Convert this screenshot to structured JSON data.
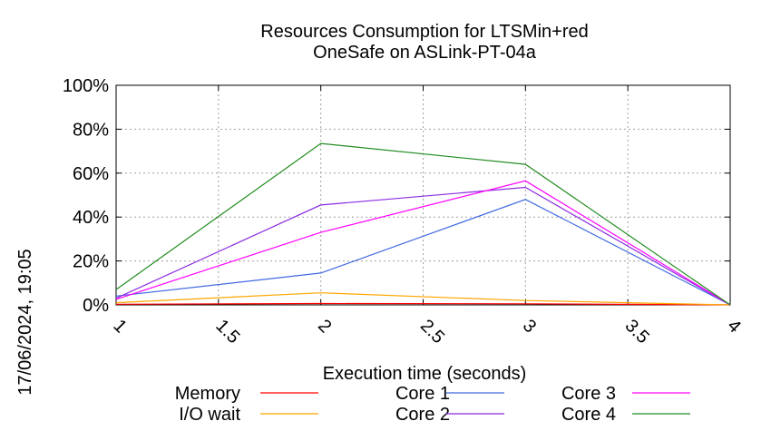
{
  "chart_data": {
    "type": "line",
    "title_lines": [
      "Resources Consumption for LTSMin+red",
      "OneSafe on ASLink-PT-04a"
    ],
    "xlabel": "Execution time (seconds)",
    "ylabel": "",
    "timestamp": "17/06/2024, 19:05",
    "xlim": [
      1,
      4
    ],
    "ylim": [
      0,
      100
    ],
    "x_ticks": [
      {
        "value": 1,
        "label": "1"
      },
      {
        "value": 1.5,
        "label": "1.5"
      },
      {
        "value": 2,
        "label": "2"
      },
      {
        "value": 2.5,
        "label": "2.5"
      },
      {
        "value": 3,
        "label": "3"
      },
      {
        "value": 3.5,
        "label": "3.5"
      },
      {
        "value": 4,
        "label": "4"
      }
    ],
    "y_ticks": [
      {
        "value": 0,
        "label": "0%"
      },
      {
        "value": 20,
        "label": "20%"
      },
      {
        "value": 40,
        "label": "40%"
      },
      {
        "value": 60,
        "label": "60%"
      },
      {
        "value": 80,
        "label": "80%"
      },
      {
        "value": 100,
        "label": "100%"
      }
    ],
    "grid": true,
    "legend_position": "bottom",
    "series": [
      {
        "name": "Memory",
        "color": "#ff0000",
        "x": [
          1,
          2,
          3,
          4
        ],
        "y": [
          0.3,
          0.6,
          0.5,
          0
        ]
      },
      {
        "name": "I/O wait",
        "color": "#ffa500",
        "x": [
          1,
          2,
          3,
          4
        ],
        "y": [
          1,
          5.5,
          2,
          0
        ]
      },
      {
        "name": "Core 1",
        "color": "#4169e1",
        "x": [
          1,
          2,
          3,
          4
        ],
        "y": [
          4,
          14.5,
          48,
          0
        ]
      },
      {
        "name": "Core 2",
        "color": "#8a2be2",
        "x": [
          1,
          2,
          3,
          4
        ],
        "y": [
          3,
          45.5,
          53.5,
          0
        ]
      },
      {
        "name": "Core 3",
        "color": "#ff00ff",
        "x": [
          1,
          2,
          3,
          4
        ],
        "y": [
          2.5,
          33,
          56.5,
          0
        ]
      },
      {
        "name": "Core 4",
        "color": "#228b22",
        "x": [
          1,
          2,
          3,
          4
        ],
        "y": [
          7,
          73.5,
          64,
          0
        ]
      }
    ]
  }
}
